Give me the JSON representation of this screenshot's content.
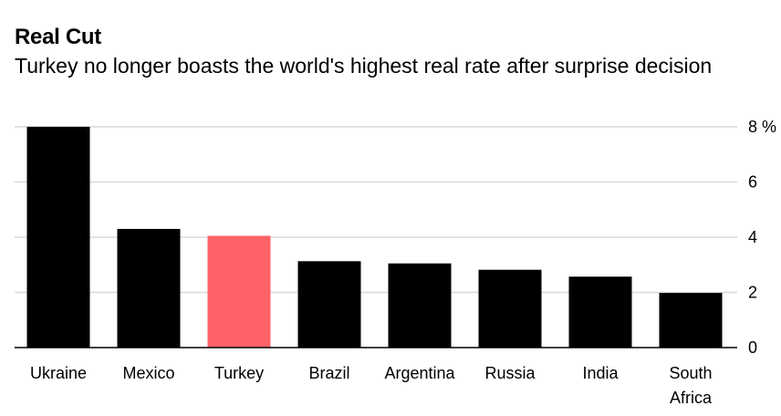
{
  "header": {
    "title": "Real Cut",
    "subtitle": "Turkey no longer boasts the world's highest real rate after surprise decision"
  },
  "colors": {
    "default_bar": "#000000",
    "highlight_bar": "#ff6367",
    "gridline": "#d9d9d9",
    "axis": "#000000"
  },
  "chart_data": {
    "type": "bar",
    "title": "Real Cut",
    "subtitle": "Turkey no longer boasts the world's highest real rate after surprise decision",
    "xlabel": "",
    "ylabel": "",
    "unit_label": "%",
    "categories": [
      [
        "Ukraine"
      ],
      [
        "Mexico"
      ],
      [
        "Turkey"
      ],
      [
        "Brazil"
      ],
      [
        "Argentina"
      ],
      [
        "Russia"
      ],
      [
        "India"
      ],
      [
        "South",
        "Africa"
      ]
    ],
    "values": [
      8.0,
      4.3,
      4.05,
      3.13,
      3.05,
      2.82,
      2.57,
      1.98
    ],
    "highlight_index": 2,
    "ylim": [
      0,
      8
    ],
    "yticks": [
      0,
      2,
      4,
      6,
      8
    ],
    "ytick_labels": [
      "0",
      "2",
      "4",
      "6",
      "8 %"
    ],
    "grid": true,
    "axis_position": "right"
  }
}
